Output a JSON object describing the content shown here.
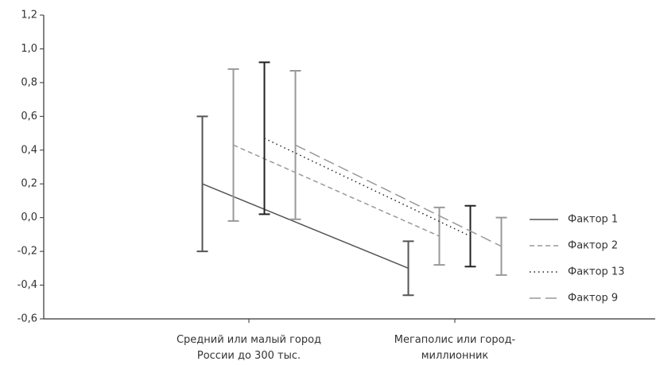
{
  "chart_data": {
    "type": "line",
    "categories": [
      "Средний или малый город России до 300 тыс.",
      "Мегаполис или город-миллионник"
    ],
    "series": [
      {
        "name": "Фактор 1",
        "color": "#555555",
        "dash": "solid",
        "values": [
          0.2,
          -0.3
        ],
        "errors": [
          0.4,
          0.16
        ]
      },
      {
        "name": "Фактор 2",
        "color": "#999999",
        "dash": "short-dash",
        "values": [
          0.43,
          -0.11
        ],
        "errors": [
          0.45,
          0.17
        ]
      },
      {
        "name": "Фактор 13",
        "color": "#222222",
        "dash": "dot",
        "values": [
          0.47,
          -0.11
        ],
        "errors": [
          0.45,
          0.18
        ]
      },
      {
        "name": "Фактор 9",
        "color": "#999999",
        "dash": "long-dash",
        "values": [
          0.43,
          -0.17
        ],
        "errors": [
          0.44,
          0.17
        ]
      }
    ],
    "ylim": [
      -0.6,
      1.2
    ],
    "yticks": [
      {
        "value": -0.6,
        "label": "-0,6"
      },
      {
        "value": -0.4,
        "label": "-0,4"
      },
      {
        "value": -0.2,
        "label": "-0,2"
      },
      {
        "value": 0,
        "label": "0,0"
      },
      {
        "value": 0.2,
        "label": "0,2"
      },
      {
        "value": 0.4,
        "label": "0,4"
      },
      {
        "value": 0.6,
        "label": "0,6"
      },
      {
        "value": 0.8,
        "label": "0,8"
      },
      {
        "value": 1.0,
        "label": "1,0"
      },
      {
        "value": 1.2,
        "label": "1,2"
      }
    ],
    "grid": false,
    "legend": "right"
  }
}
